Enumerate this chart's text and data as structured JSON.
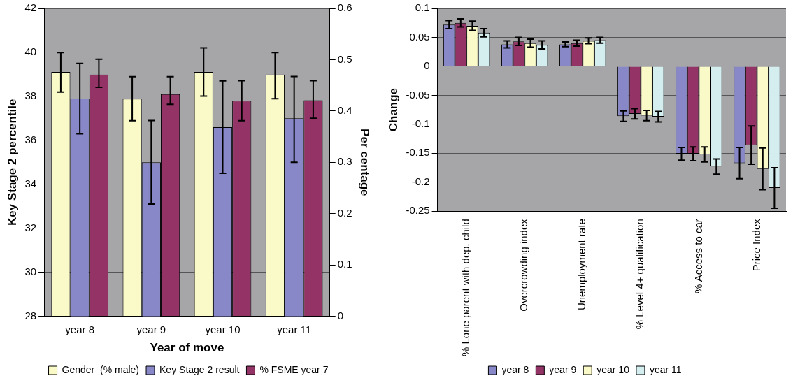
{
  "chart_data": [
    {
      "type": "bar",
      "xlabel": "Year of move",
      "ylabel": "Key Stage 2 percentile",
      "y2label": "Per centage",
      "categories": [
        "year 8",
        "year 9",
        "year 10",
        "year 11"
      ],
      "series": [
        {
          "name": "Gender  (% male)",
          "color": "#fafac8",
          "axis": "y2",
          "values": [
            0.476,
            0.424,
            0.476,
            0.471
          ],
          "errors": [
            [
              0.437,
              0.514
            ],
            [
              0.381,
              0.467
            ],
            [
              0.429,
              0.523
            ],
            [
              0.424,
              0.514
            ]
          ]
        },
        {
          "name": "Key Stage 2 result",
          "color": "#8888c8",
          "values": [
            37.9,
            35.0,
            36.6,
            37.0
          ],
          "errors": [
            [
              36.3,
              39.5
            ],
            [
              33.1,
              36.9
            ],
            [
              34.5,
              38.7
            ],
            [
              35.0,
              38.9
            ]
          ]
        },
        {
          "name": "% FSME year 7",
          "color": "#933366",
          "axis": "y2",
          "values": [
            0.471,
            0.433,
            0.42,
            0.421
          ],
          "errors": [
            [
              0.446,
              0.501
            ],
            [
              0.413,
              0.467
            ],
            [
              0.381,
              0.459
            ],
            [
              0.386,
              0.459
            ]
          ]
        }
      ],
      "ylim": [
        28,
        42
      ],
      "yticks": [
        28,
        30,
        32,
        34,
        36,
        38,
        40,
        42
      ],
      "y2lim": [
        0,
        0.6
      ],
      "y2ticks": [
        0,
        0.1,
        0.2,
        0.3,
        0.4,
        0.5,
        0.6
      ],
      "grid": "y",
      "legend": "bottom"
    },
    {
      "type": "bar",
      "ylabel": "Change",
      "categories": [
        "% Lone parent with dep. child",
        "Overcrowding index",
        "Unemployment rate",
        "% Level 4+ qualification",
        "% Access to car",
        "Price Index"
      ],
      "series": [
        {
          "name": "year 8",
          "color": "#8888c8",
          "values": [
            0.072,
            0.038,
            0.038,
            -0.086,
            -0.151,
            -0.167
          ],
          "errors": [
            0.007,
            0.006,
            0.004,
            0.009,
            0.011,
            0.027
          ]
        },
        {
          "name": "year 9",
          "color": "#933366",
          "values": [
            0.075,
            0.043,
            0.04,
            -0.082,
            -0.151,
            -0.136
          ],
          "errors": [
            0.007,
            0.007,
            0.005,
            0.009,
            0.012,
            0.033
          ]
        },
        {
          "name": "year 10",
          "color": "#fafac8",
          "values": [
            0.07,
            0.04,
            0.044,
            -0.085,
            -0.152,
            -0.177
          ],
          "errors": [
            0.008,
            0.007,
            0.005,
            0.009,
            0.013,
            0.036
          ]
        },
        {
          "name": "year 11",
          "color": "#d4eef0",
          "values": [
            0.058,
            0.037,
            0.045,
            -0.087,
            -0.173,
            -0.21
          ],
          "errors": [
            0.007,
            0.007,
            0.005,
            0.009,
            0.013,
            0.035
          ]
        }
      ],
      "ylim": [
        -0.25,
        0.1
      ],
      "yticks": [
        -0.25,
        -0.2,
        -0.15,
        -0.1,
        -0.05,
        0,
        0.05,
        0.1
      ],
      "grid": "y",
      "legend": "bottom"
    }
  ]
}
